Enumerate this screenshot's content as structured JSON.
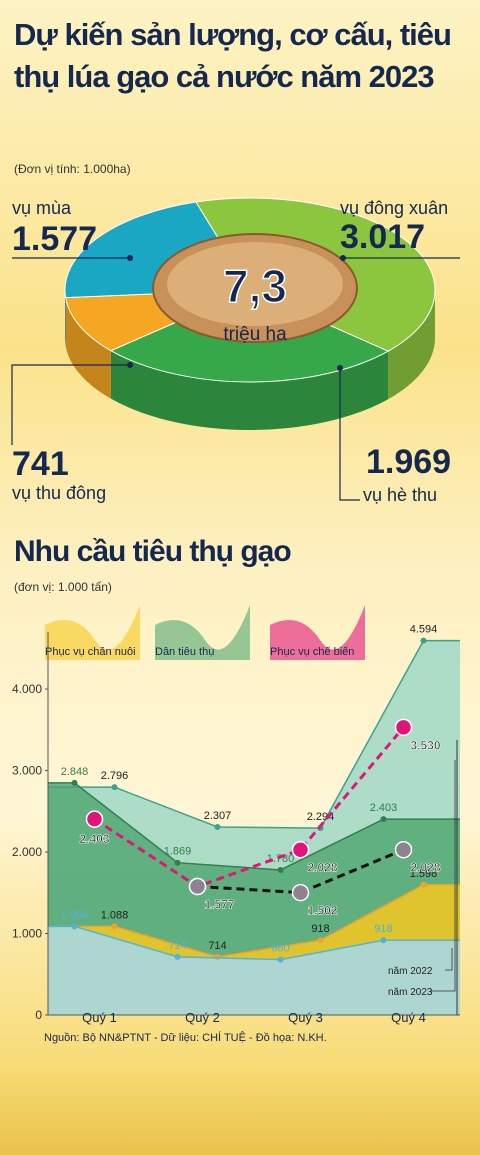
{
  "chart_data": [
    {
      "type": "pie",
      "title": "Dự kiến sản lượng, cơ cấu, tiêu thụ lúa gạo cả nước năm 2023",
      "subtitle": "(Đơn vị tính: 1.000ha)",
      "center_value": "7,3",
      "center_label": "triệu ha",
      "categories": [
        "vụ đông xuân",
        "vụ hè thu",
        "vụ thu đông",
        "vụ mùa"
      ],
      "values": [
        3017,
        1969,
        741,
        1577
      ],
      "value_labels": [
        "3.017",
        "1.969",
        "741",
        "1.577"
      ],
      "colors": [
        "#8cc63f",
        "#36a84a",
        "#f5a623",
        "#1aa7c4"
      ]
    },
    {
      "type": "area-line",
      "title": "Nhu cầu tiêu thụ gạo",
      "subtitle": "(đơn vị: 1.000 tấn)",
      "categories": [
        "Quý 1",
        "Quý 2",
        "Quý 3",
        "Quý 4"
      ],
      "ylim": [
        0,
        4700
      ],
      "yticks": [
        0,
        {
          "value": 1000,
          "label": "1.000"
        },
        {
          "value": 2000,
          "label": "2.000"
        },
        {
          "value": 3000,
          "label": "3.000"
        },
        {
          "value": 4000,
          "label": "4.000"
        }
      ],
      "series": [
        {
          "name": "Dân tiêu thụ",
          "year": "năm 2023",
          "style": "area",
          "color": "#3aa38f",
          "fill": "#9fd8c6",
          "values": [
            2796,
            2307,
            2294,
            4594
          ],
          "value_labels": [
            "2.796",
            "2.307",
            "2.294",
            "4.594"
          ]
        },
        {
          "name": "Dân tiêu thụ",
          "year": "năm 2022",
          "style": "area",
          "color": "#2f7f4f",
          "fill": "#52a873",
          "values": [
            2848,
            1869,
            1780,
            2403
          ],
          "value_labels": [
            "2.848",
            "1.869",
            "1.780",
            "2.403"
          ]
        },
        {
          "name": "Phục vụ chăn nuôi",
          "year": "năm 2023",
          "style": "area",
          "color": "#f0a030",
          "fill": "#f6c81e",
          "values": [
            1088,
            714,
            918,
            1598
          ],
          "value_labels": [
            "1.088",
            "714",
            "918",
            "1.598"
          ]
        },
        {
          "name": "Phục vụ chăn nuôi",
          "year": "năm 2022",
          "style": "area",
          "color": "#4fb4d8",
          "fill": "#a5d9ee",
          "values": [
            1088,
            714,
            680,
            918
          ],
          "value_labels": [
            "1.088",
            "714",
            "680",
            "918"
          ]
        },
        {
          "name": "Phục vụ chế biến",
          "year": "năm 2023",
          "style": "dashed",
          "color": "#e0157a",
          "values": [
            2403,
            1577,
            2028,
            3530
          ],
          "value_labels": [
            "2.403",
            null,
            "2.028",
            "3.530"
          ]
        },
        {
          "name": "Phục vụ chế biến",
          "year": "năm 2022",
          "style": "dashed",
          "color": "#111111",
          "values": [
            null,
            1577,
            1502,
            2028
          ],
          "value_labels": [
            null,
            "1.577",
            "1.502",
            "2.028"
          ]
        }
      ],
      "source": "Nguồn: Bộ NN&PTNT - Dữ liệu: CHÍ TUỆ - Đồ họa: N.KH."
    }
  ]
}
